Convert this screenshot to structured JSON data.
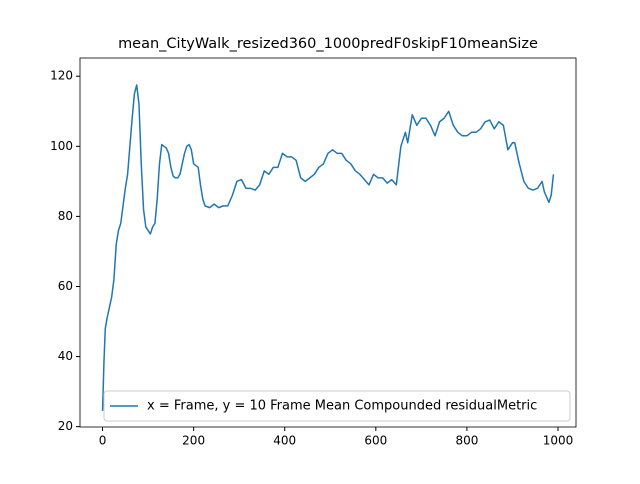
{
  "chart_data": {
    "type": "line",
    "title": "mean_CityWalk_resized360_1000predF0skipF10meanSize",
    "x": [
      0,
      3,
      6,
      10,
      15,
      20,
      25,
      30,
      35,
      40,
      45,
      50,
      55,
      60,
      65,
      70,
      75,
      80,
      85,
      90,
      95,
      100,
      105,
      110,
      115,
      120,
      125,
      130,
      135,
      140,
      145,
      150,
      155,
      160,
      165,
      170,
      175,
      180,
      185,
      190,
      195,
      200,
      210,
      215,
      220,
      225,
      235,
      245,
      255,
      265,
      275,
      285,
      295,
      305,
      315,
      325,
      335,
      345,
      355,
      365,
      375,
      385,
      395,
      405,
      415,
      425,
      435,
      445,
      455,
      465,
      475,
      485,
      495,
      505,
      515,
      525,
      535,
      545,
      555,
      565,
      575,
      585,
      595,
      605,
      615,
      625,
      635,
      645,
      655,
      665,
      670,
      680,
      690,
      700,
      710,
      720,
      730,
      740,
      750,
      760,
      770,
      780,
      790,
      800,
      810,
      820,
      830,
      840,
      850,
      860,
      870,
      880,
      890,
      900,
      905,
      915,
      925,
      935,
      945,
      955,
      965,
      970,
      980,
      985,
      990
    ],
    "series": [
      {
        "name": "x = Frame, y = 10 Frame Mean Compounded residualMetric",
        "color": "#1f77b4",
        "values": [
          24.5,
          38,
          48,
          51,
          54,
          57,
          62,
          72,
          76,
          78,
          83,
          88,
          92,
          100,
          108,
          115,
          117.5,
          112,
          95,
          82,
          77,
          76,
          75,
          77,
          78,
          85,
          95,
          100.5,
          100,
          99.5,
          98,
          94,
          91.5,
          91,
          91,
          92,
          95,
          98,
          100,
          100.5,
          99,
          95,
          94,
          89,
          85,
          83,
          82.5,
          83.5,
          82.5,
          83,
          83,
          86,
          90,
          90.5,
          88,
          88,
          87.5,
          89,
          93,
          92,
          94,
          94,
          98,
          97,
          97,
          96,
          91,
          90,
          91,
          92,
          94,
          95,
          98,
          99,
          98,
          98,
          96,
          95,
          93,
          92,
          90.5,
          89,
          92,
          91,
          91,
          89.5,
          90.5,
          89,
          100,
          104,
          101,
          109,
          106,
          108,
          108,
          106,
          103,
          107,
          108,
          110,
          106,
          104,
          103,
          103,
          104,
          104,
          105,
          107,
          107.5,
          105,
          107,
          106,
          99,
          101,
          101,
          95,
          90,
          88,
          87.5,
          88,
          90,
          87,
          84,
          86,
          92
        ]
      }
    ],
    "xlim": [
      -49.5,
      1039.5
    ],
    "xticks": [
      0,
      200,
      400,
      600,
      800,
      1000
    ],
    "ylim": [
      19.9,
      125.2
    ],
    "yticks": [
      20,
      40,
      60,
      80,
      100,
      120
    ],
    "grid": false,
    "legend_loc": "lower center"
  }
}
